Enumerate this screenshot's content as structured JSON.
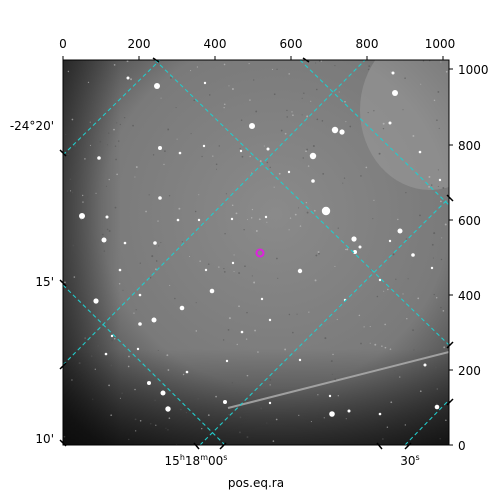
{
  "image": {
    "xlabel": "pos.eq.ra",
    "colormap": "gray",
    "target_marker_color": "#dd22dd",
    "grid_color": "#22cccc"
  },
  "top_axis": {
    "ticks": [
      "0",
      "200",
      "400",
      "600",
      "800",
      "1000"
    ]
  },
  "right_axis": {
    "ticks": [
      "1000",
      "800",
      "600",
      "400",
      "200",
      "0"
    ]
  },
  "left_axis": {
    "ticks": [
      "-24°20'",
      "15'",
      "10'"
    ]
  },
  "bottom_axis": {
    "ticks": [
      {
        "main": "15",
        "sup1": "h",
        "mid": "18",
        "sup2": "m",
        "tail": "00",
        "sup3": "s"
      },
      {
        "main": "30",
        "sup1": "s"
      }
    ]
  }
}
